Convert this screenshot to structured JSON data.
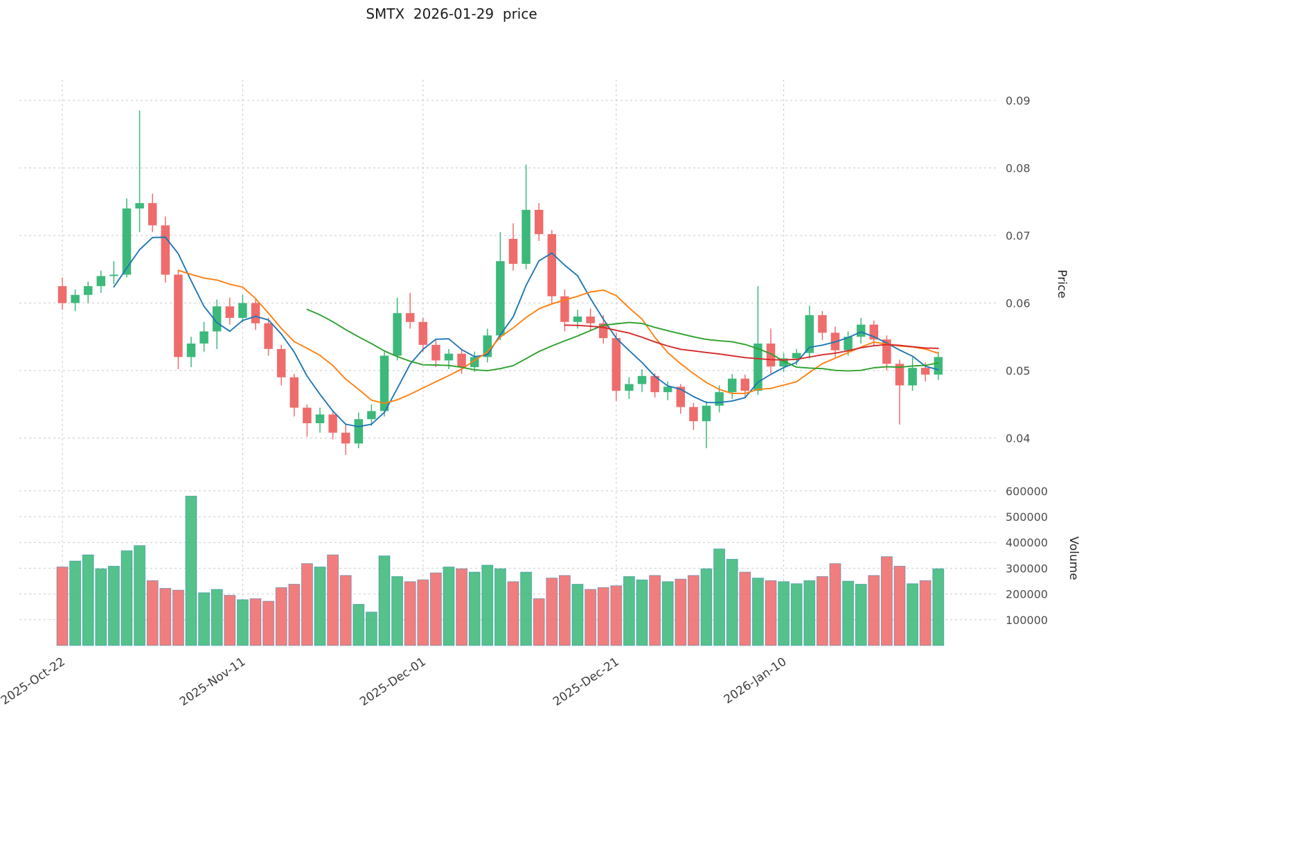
{
  "title": "SMTX  2026-01-29  price",
  "axes": {
    "price_label": "Price",
    "volume_label": "Volume",
    "price_ticks": [
      0.04,
      0.05,
      0.06,
      0.07,
      0.08,
      0.09
    ],
    "volume_ticks": [
      100000,
      200000,
      300000,
      400000,
      500000,
      600000
    ],
    "x_ticks": [
      {
        "index": 0,
        "label": "2025-Oct-22"
      },
      {
        "index": 14,
        "label": "2025-Nov-11"
      },
      {
        "index": 28,
        "label": "2025-Dec-01"
      },
      {
        "index": 43,
        "label": "2025-Dec-21"
      },
      {
        "index": 56,
        "label": "2026-Jan-10"
      }
    ]
  },
  "colors": {
    "up": "#3cb97a",
    "down": "#ef6c6c",
    "volume_edge": "#2e7dab",
    "grid": "#c9c9c9",
    "tick_text": "#4d4d4d",
    "xtick_text": "#3c3c3c",
    "axis_label_text": "#262626",
    "title_text": "#1a1a1a"
  },
  "chart_data": {
    "type": "candlestick",
    "symbol": "SMTX",
    "as_of_date": "2026-01-29",
    "title": "SMTX  2026-01-29  price",
    "ylabel_price": "Price",
    "ylabel_volume": "Volume",
    "price_ylim": [
      0.034,
      0.0931
    ],
    "volume_ylim": [
      0,
      620000
    ],
    "grid": true,
    "legend": false,
    "dates": [
      "2025-10-22",
      "2025-10-23",
      "2025-10-24",
      "2025-10-27",
      "2025-10-28",
      "2025-10-29",
      "2025-10-30",
      "2025-10-31",
      "2025-11-03",
      "2025-11-04",
      "2025-11-05",
      "2025-11-06",
      "2025-11-07",
      "2025-11-10",
      "2025-11-11",
      "2025-11-12",
      "2025-11-13",
      "2025-11-14",
      "2025-11-17",
      "2025-11-18",
      "2025-11-19",
      "2025-11-20",
      "2025-11-21",
      "2025-11-24",
      "2025-11-25",
      "2025-11-26",
      "2025-11-27",
      "2025-11-28",
      "2025-12-01",
      "2025-12-02",
      "2025-12-03",
      "2025-12-04",
      "2025-12-05",
      "2025-12-08",
      "2025-12-09",
      "2025-12-10",
      "2025-12-11",
      "2025-12-12",
      "2025-12-15",
      "2025-12-16",
      "2025-12-17",
      "2025-12-18",
      "2025-12-19",
      "2025-12-22",
      "2025-12-23",
      "2025-12-24",
      "2025-12-26",
      "2025-12-29",
      "2025-12-30",
      "2025-12-31",
      "2026-01-02",
      "2026-01-05",
      "2026-01-06",
      "2026-01-07",
      "2026-01-08",
      "2026-01-09",
      "2026-01-12",
      "2026-01-13",
      "2026-01-14",
      "2026-01-15",
      "2026-01-16",
      "2026-01-20",
      "2026-01-21",
      "2026-01-22",
      "2026-01-23",
      "2026-01-26",
      "2026-01-27",
      "2026-01-28",
      "2026-01-29"
    ],
    "open": [
      0.0625,
      0.06,
      0.0612,
      0.0625,
      0.064,
      0.0642,
      0.074,
      0.0748,
      0.0715,
      0.0642,
      0.052,
      0.054,
      0.0558,
      0.0595,
      0.0578,
      0.06,
      0.057,
      0.0532,
      0.049,
      0.0445,
      0.0422,
      0.0435,
      0.0408,
      0.0392,
      0.0428,
      0.044,
      0.0522,
      0.0585,
      0.0572,
      0.0538,
      0.0515,
      0.0525,
      0.0505,
      0.052,
      0.0552,
      0.0695,
      0.0658,
      0.0738,
      0.0702,
      0.061,
      0.0572,
      0.058,
      0.057,
      0.0548,
      0.047,
      0.048,
      0.0492,
      0.0468,
      0.0476,
      0.0446,
      0.0425,
      0.0448,
      0.0468,
      0.0488,
      0.047,
      0.054,
      0.0506,
      0.0518,
      0.0526,
      0.0582,
      0.0556,
      0.053,
      0.055,
      0.0568,
      0.0546,
      0.051,
      0.0478,
      0.0504,
      0.0494
    ],
    "high": [
      0.0638,
      0.062,
      0.0632,
      0.0648,
      0.0662,
      0.0755,
      0.0885,
      0.0762,
      0.0728,
      0.0648,
      0.055,
      0.0572,
      0.0605,
      0.0608,
      0.0612,
      0.0605,
      0.0578,
      0.0538,
      0.0495,
      0.045,
      0.0445,
      0.044,
      0.042,
      0.0438,
      0.045,
      0.053,
      0.0608,
      0.0615,
      0.0578,
      0.0545,
      0.0532,
      0.053,
      0.0528,
      0.0562,
      0.0705,
      0.0718,
      0.0805,
      0.0748,
      0.0708,
      0.062,
      0.059,
      0.0592,
      0.0582,
      0.0556,
      0.049,
      0.0502,
      0.0496,
      0.0484,
      0.048,
      0.0452,
      0.0455,
      0.0478,
      0.0495,
      0.0494,
      0.0625,
      0.0562,
      0.0526,
      0.0532,
      0.0596,
      0.0588,
      0.0565,
      0.0558,
      0.0578,
      0.0574,
      0.0552,
      0.0516,
      0.052,
      0.0512,
      0.0528
    ],
    "low": [
      0.059,
      0.0588,
      0.06,
      0.0615,
      0.0628,
      0.0638,
      0.0705,
      0.0705,
      0.063,
      0.0502,
      0.0505,
      0.0528,
      0.0532,
      0.0568,
      0.0572,
      0.056,
      0.0522,
      0.0478,
      0.0432,
      0.0402,
      0.0408,
      0.0398,
      0.0375,
      0.0385,
      0.0418,
      0.0432,
      0.0515,
      0.0562,
      0.0528,
      0.0505,
      0.0502,
      0.0495,
      0.0498,
      0.0512,
      0.0545,
      0.0648,
      0.065,
      0.0692,
      0.0598,
      0.0558,
      0.0562,
      0.056,
      0.054,
      0.0455,
      0.0458,
      0.0468,
      0.046,
      0.0456,
      0.0436,
      0.0412,
      0.0385,
      0.0438,
      0.0458,
      0.046,
      0.0464,
      0.0496,
      0.0498,
      0.0508,
      0.0518,
      0.0545,
      0.052,
      0.0522,
      0.054,
      0.0536,
      0.05,
      0.042,
      0.047,
      0.0484,
      0.0486
    ],
    "close": [
      0.06,
      0.0612,
      0.0625,
      0.064,
      0.0642,
      0.074,
      0.0748,
      0.0715,
      0.0642,
      0.052,
      0.054,
      0.0558,
      0.0595,
      0.0578,
      0.06,
      0.057,
      0.0532,
      0.049,
      0.0445,
      0.0422,
      0.0435,
      0.0408,
      0.0392,
      0.0428,
      0.044,
      0.0522,
      0.0585,
      0.0572,
      0.0538,
      0.0515,
      0.0525,
      0.0505,
      0.052,
      0.0552,
      0.0662,
      0.0658,
      0.0738,
      0.0702,
      0.061,
      0.0572,
      0.058,
      0.057,
      0.0548,
      0.047,
      0.048,
      0.0492,
      0.0468,
      0.0476,
      0.0446,
      0.0425,
      0.0448,
      0.0468,
      0.0488,
      0.047,
      0.054,
      0.0506,
      0.0518,
      0.0526,
      0.0582,
      0.0556,
      0.053,
      0.055,
      0.0568,
      0.0546,
      0.051,
      0.0478,
      0.0504,
      0.0494,
      0.052
    ],
    "volume": [
      305000,
      328000,
      352000,
      298000,
      308000,
      368000,
      388000,
      252000,
      222000,
      215000,
      580000,
      205000,
      218000,
      195000,
      178000,
      182000,
      172000,
      225000,
      238000,
      318000,
      305000,
      352000,
      272000,
      160000,
      130000,
      348000,
      268000,
      248000,
      255000,
      282000,
      305000,
      298000,
      285000,
      312000,
      298000,
      248000,
      285000,
      182000,
      262000,
      272000,
      238000,
      218000,
      225000,
      232000,
      268000,
      255000,
      272000,
      248000,
      258000,
      272000,
      298000,
      375000,
      335000,
      285000,
      262000,
      252000,
      248000,
      240000,
      252000,
      268000,
      318000,
      250000,
      238000,
      272000,
      345000,
      308000,
      240000,
      252000,
      298000
    ],
    "moving_averages": [
      {
        "window": 5,
        "color": "#1f77b4"
      },
      {
        "window": 10,
        "color": "#ff7f0e"
      },
      {
        "window": 20,
        "color": "#2ca02c"
      },
      {
        "window": 40,
        "color": "#d62728"
      }
    ]
  }
}
